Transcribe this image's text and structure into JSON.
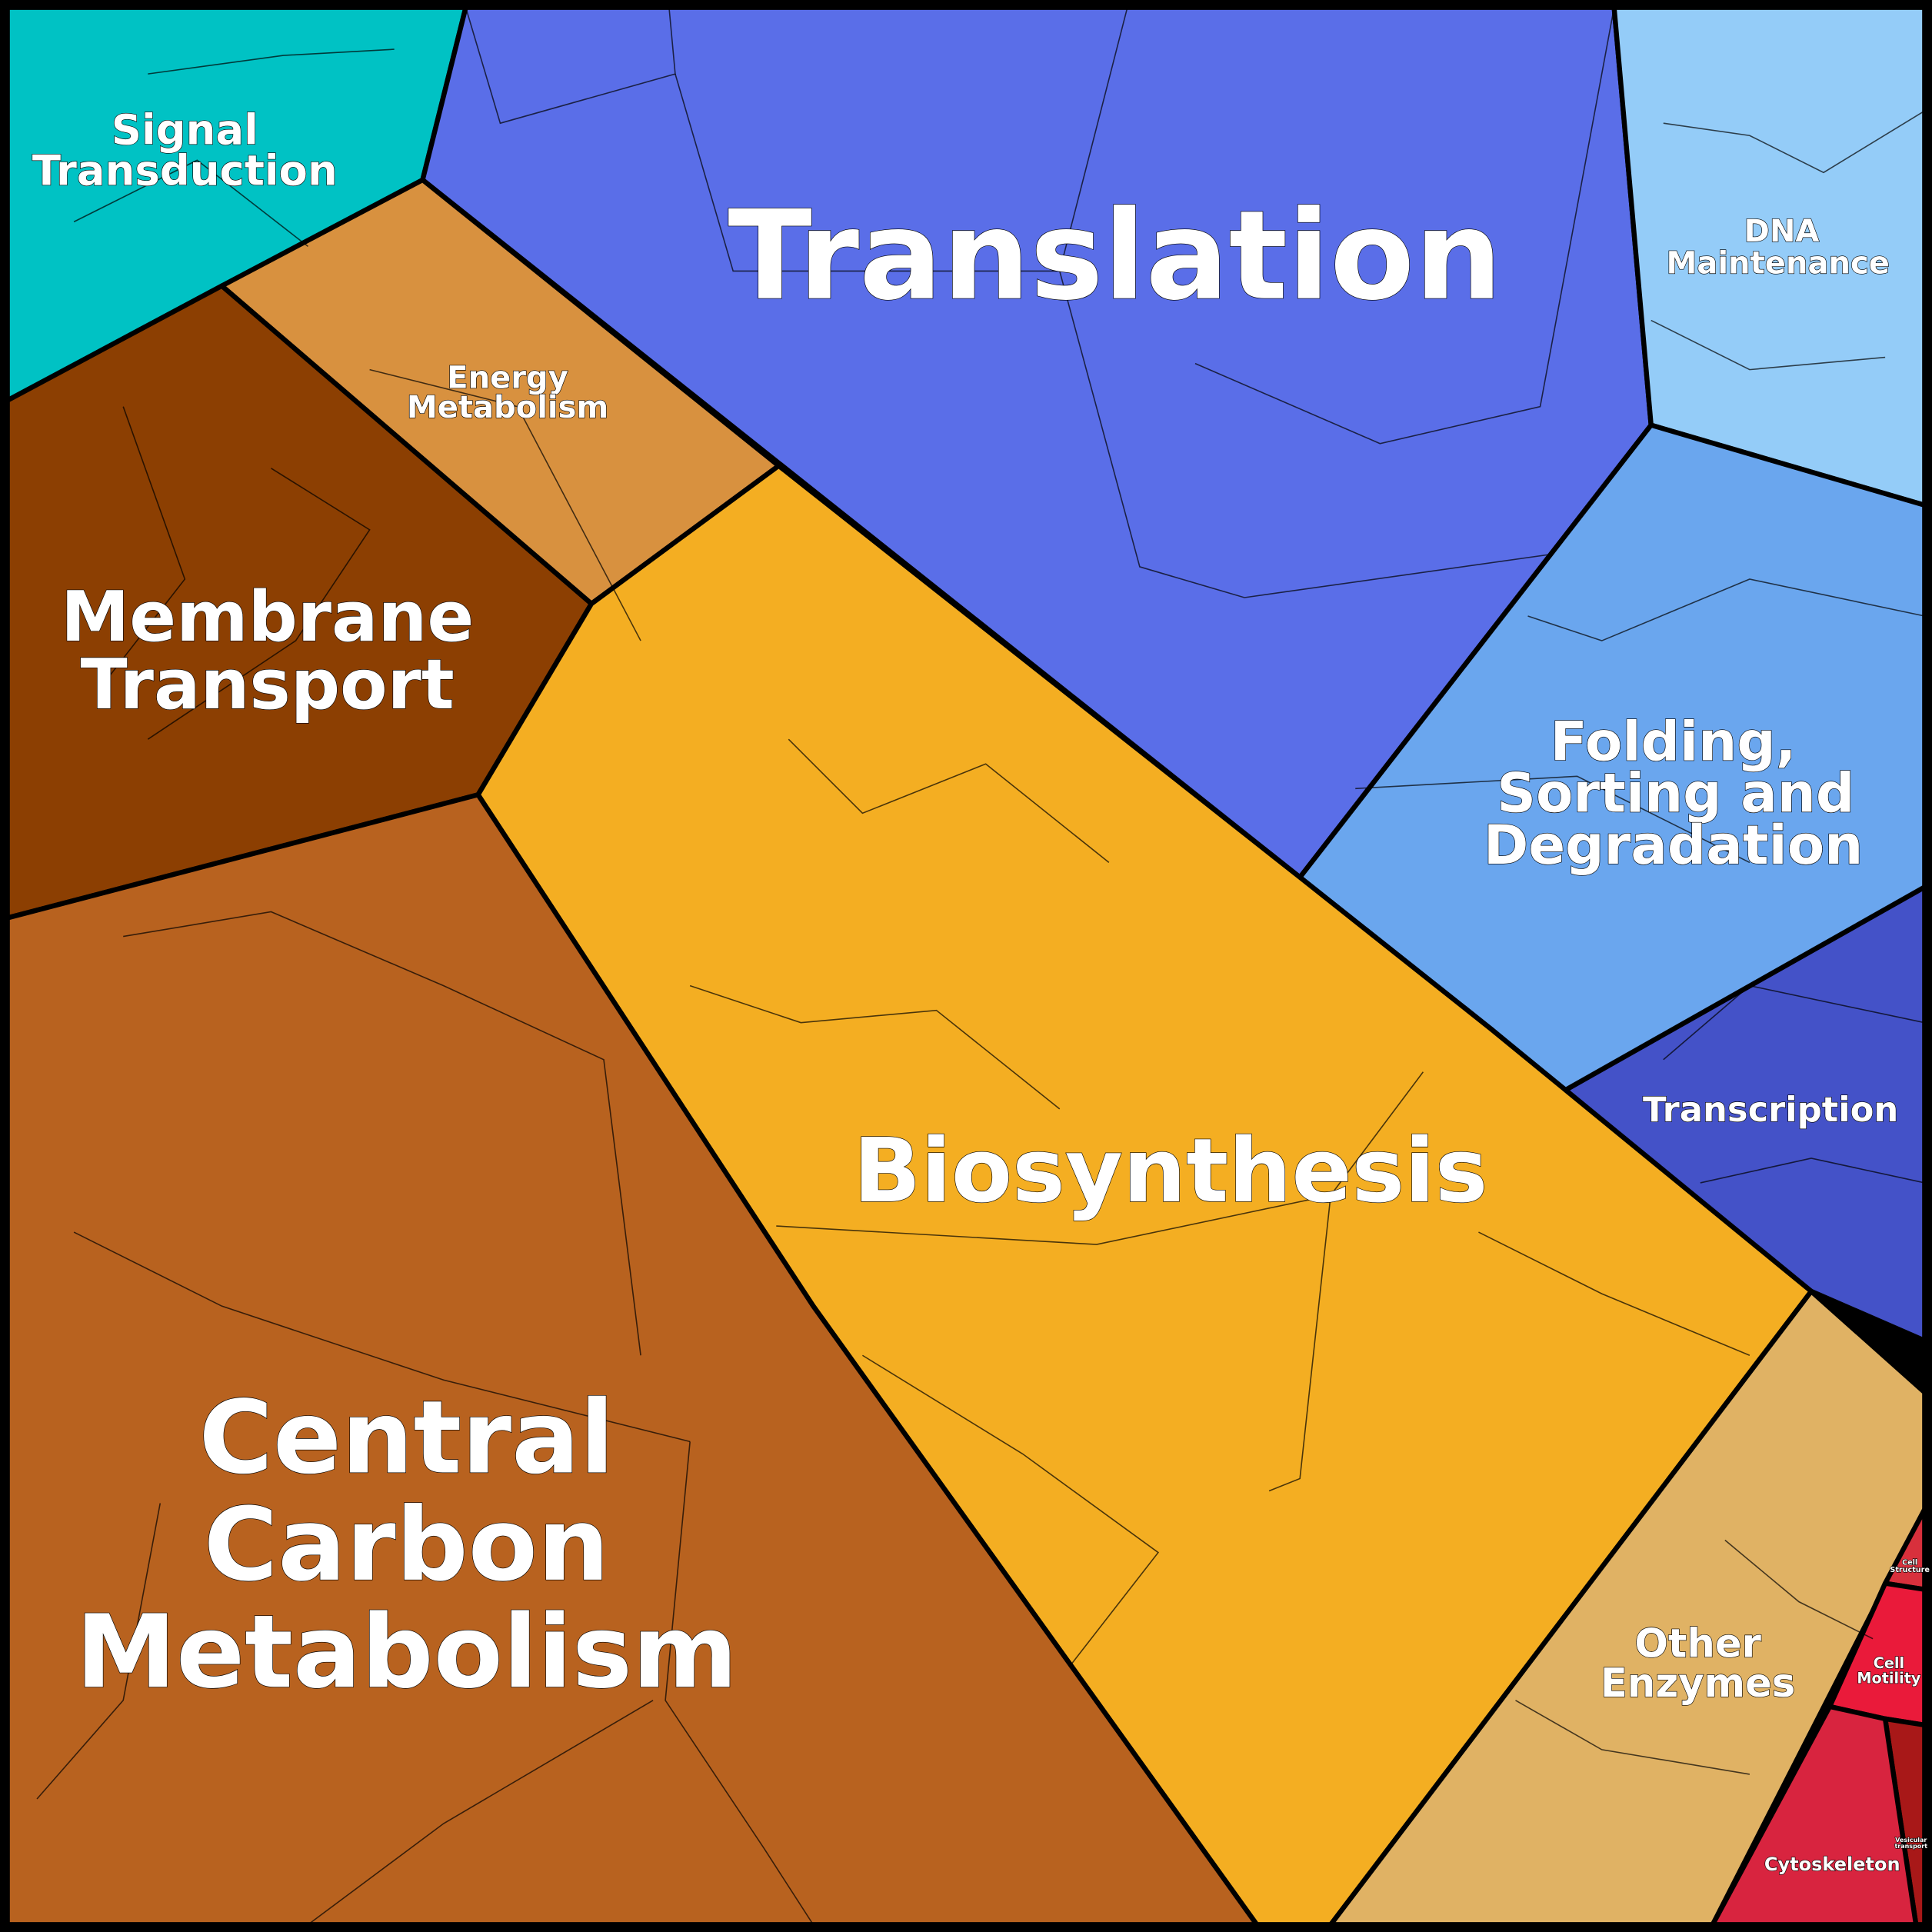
{
  "regions": {
    "translation": {
      "lines": [
        "Translation"
      ],
      "color": "#5a6ee8"
    },
    "signal": {
      "lines": [
        "Signal",
        "Transduction"
      ],
      "color": "#00c2c4"
    },
    "dna": {
      "lines": [
        "DNA",
        "Maintenance"
      ],
      "color": "#94ccf8"
    },
    "energy": {
      "lines": [
        "Energy",
        "Metabolism"
      ],
      "color": "#d8913f"
    },
    "membrane": {
      "lines": [
        "Membrane",
        "Transport"
      ],
      "color": "#8c3f02"
    },
    "folding": {
      "lines": [
        "Folding,",
        "Sorting and",
        "Degradation"
      ],
      "color": "#6aa6ee"
    },
    "transcription": {
      "lines": [
        "Transcription"
      ],
      "color": "#4452c8"
    },
    "biosynthesis": {
      "lines": [
        "Biosynthesis"
      ],
      "color": "#f4ae22"
    },
    "central": {
      "lines": [
        "Central",
        "Carbon",
        "Metabolism"
      ],
      "color": "#b8621f"
    },
    "other": {
      "lines": [
        "Other",
        "Enzymes"
      ],
      "color": "#e0b264"
    },
    "cell_structure": {
      "lines": [
        "Cell",
        "Structure"
      ],
      "color": "#d8303c"
    },
    "cell_motility": {
      "lines": [
        "Cell",
        "Motility"
      ],
      "color": "#ea1a3a"
    },
    "vesicular": {
      "lines": [
        "Vesicular",
        "transport"
      ],
      "color": "#a81818"
    },
    "cytoskeleton": {
      "lines": [
        "Cytoskeleton"
      ],
      "color": "#d8243f"
    }
  }
}
